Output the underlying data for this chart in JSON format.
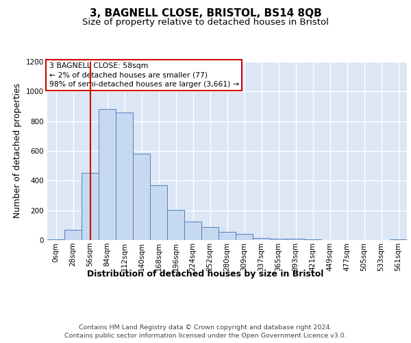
{
  "title": "3, BAGNELL CLOSE, BRISTOL, BS14 8QB",
  "subtitle": "Size of property relative to detached houses in Bristol",
  "xlabel": "Distribution of detached houses by size in Bristol",
  "ylabel": "Number of detached properties",
  "bar_labels": [
    "0sqm",
    "28sqm",
    "56sqm",
    "84sqm",
    "112sqm",
    "140sqm",
    "168sqm",
    "196sqm",
    "224sqm",
    "252sqm",
    "280sqm",
    "309sqm",
    "337sqm",
    "365sqm",
    "393sqm",
    "421sqm",
    "449sqm",
    "477sqm",
    "505sqm",
    "533sqm",
    "561sqm"
  ],
  "bar_values": [
    5,
    70,
    450,
    880,
    860,
    580,
    370,
    205,
    125,
    90,
    55,
    40,
    15,
    10,
    8,
    3,
    2,
    2,
    2,
    2,
    3
  ],
  "bar_color": "#c6d9f1",
  "bar_edge_color": "#4f81bd",
  "red_line_x": 2,
  "red_line_color": "#cc0000",
  "annotation_text": "3 BAGNELL CLOSE: 58sqm\n← 2% of detached houses are smaller (77)\n98% of semi-detached houses are larger (3,661) →",
  "annotation_box_color": "#ffffff",
  "annotation_box_edge": "#cc0000",
  "ylim": [
    0,
    1200
  ],
  "yticks": [
    0,
    200,
    400,
    600,
    800,
    1000,
    1200
  ],
  "footer_text": "Contains HM Land Registry data © Crown copyright and database right 2024.\nContains public sector information licensed under the Open Government Licence v3.0.",
  "fig_bg_color": "#ffffff",
  "plot_bg_color": "#dce6f5",
  "grid_color": "#ffffff",
  "title_fontsize": 11,
  "subtitle_fontsize": 9.5,
  "axis_label_fontsize": 9,
  "tick_fontsize": 7.5,
  "footer_fontsize": 6.8
}
